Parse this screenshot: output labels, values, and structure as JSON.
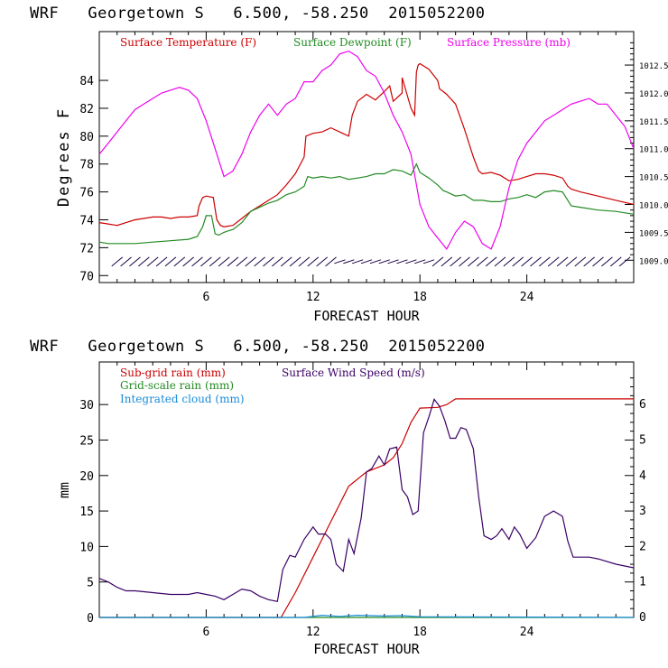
{
  "chart_data": [
    {
      "type": "line",
      "title": "WRF   Georgetown S   6.500, -58.250  2015052200",
      "xlabel": "FORECAST HOUR",
      "ylabel": "Degrees F",
      "xlim": [
        0,
        30
      ],
      "ylim": [
        69.5,
        87.5
      ],
      "x_ticks": [
        6,
        12,
        18,
        24
      ],
      "y_ticks": [
        70,
        72,
        74,
        76,
        78,
        80,
        82,
        84
      ],
      "y2lim": [
        1008.6,
        1013.1
      ],
      "y2_ticks": [
        "1009.0",
        "1009.5",
        "1010.0",
        "1010.5",
        "1011.0",
        "1011.5",
        "1012.0",
        "1012.5"
      ],
      "series": [
        {
          "name": "Surface Temperature (F)",
          "color": "#cc0000",
          "axis": "left",
          "x": [
            0,
            0.5,
            1,
            1.5,
            2,
            2.5,
            3,
            3.5,
            4,
            4.5,
            5,
            5.5,
            5.6,
            5.8,
            6,
            6.4,
            6.6,
            6.8,
            7,
            7.5,
            8,
            8.5,
            9,
            9.5,
            10,
            10.5,
            11,
            11.5,
            11.6,
            12,
            12.5,
            13,
            13.5,
            14,
            14.2,
            14.5,
            15,
            15.5,
            16,
            16.3,
            16.5,
            17,
            17,
            17.5,
            17.7,
            17.8,
            17.9,
            18,
            18.5,
            19,
            19.1,
            19.3,
            19.5,
            20,
            20.5,
            21,
            21.3,
            21.5,
            22,
            22.5,
            23,
            23.5,
            24,
            24.5,
            25,
            25.5,
            26,
            26.3,
            26.5,
            27,
            28,
            29,
            30
          ],
          "y": [
            73.8,
            73.7,
            73.6,
            73.8,
            74.0,
            74.1,
            74.2,
            74.2,
            74.1,
            74.2,
            74.2,
            74.3,
            75.0,
            75.6,
            75.7,
            75.6,
            74.0,
            73.6,
            73.5,
            73.6,
            74.1,
            74.6,
            75.0,
            75.4,
            75.8,
            76.5,
            77.3,
            78.5,
            80.0,
            80.2,
            80.3,
            80.6,
            80.3,
            80.0,
            81.5,
            82.5,
            83.0,
            82.6,
            83.2,
            83.6,
            82.5,
            83.1,
            84.2,
            82.0,
            81.5,
            84.6,
            85.1,
            85.2,
            84.8,
            84.0,
            83.4,
            83.2,
            83.0,
            82.3,
            80.5,
            78.5,
            77.5,
            77.3,
            77.4,
            77.2,
            76.8,
            76.9,
            77.1,
            77.3,
            77.3,
            77.2,
            77.0,
            76.4,
            76.2,
            76.0,
            75.7,
            75.4,
            75.1
          ]
        },
        {
          "name": "Surface Dewpoint (F)",
          "color": "#228b22",
          "axis": "left",
          "x": [
            0,
            0.5,
            1,
            2,
            3,
            4,
            5,
            5.5,
            5.8,
            6,
            6.3,
            6.5,
            6.7,
            7,
            7.2,
            7.5,
            8,
            8.5,
            9,
            9.5,
            10,
            10.5,
            11,
            11.5,
            11.7,
            12,
            12.5,
            13,
            13.5,
            14,
            14.5,
            15,
            15.5,
            16,
            16.5,
            17,
            17.5,
            17.8,
            18,
            18.5,
            19,
            19.3,
            19.5,
            20,
            20.5,
            21,
            21.5,
            22,
            22.5,
            23,
            23.5,
            24,
            24.5,
            25,
            25.5,
            26,
            26.5,
            27,
            28,
            29,
            30
          ],
          "y": [
            72.4,
            72.3,
            72.3,
            72.3,
            72.4,
            72.5,
            72.6,
            72.8,
            73.5,
            74.3,
            74.3,
            73.0,
            72.9,
            73.1,
            73.2,
            73.3,
            73.8,
            74.6,
            74.9,
            75.2,
            75.4,
            75.8,
            76.0,
            76.4,
            77.1,
            77.0,
            77.1,
            77.0,
            77.1,
            76.9,
            77.0,
            77.1,
            77.3,
            77.3,
            77.6,
            77.5,
            77.2,
            78.0,
            77.4,
            77.0,
            76.5,
            76.1,
            76.0,
            75.7,
            75.8,
            75.4,
            75.4,
            75.3,
            75.3,
            75.5,
            75.6,
            75.8,
            75.6,
            76.0,
            76.1,
            76.0,
            75.0,
            74.9,
            74.7,
            74.6,
            74.4
          ]
        },
        {
          "name": "Surface Pressure (mb)",
          "color": "#ee00ee",
          "axis": "right",
          "x": [
            0,
            0.5,
            1,
            1.5,
            2,
            2.5,
            3,
            3.5,
            4,
            4.5,
            5,
            5.5,
            6,
            6.5,
            7,
            7.5,
            8,
            8.5,
            9,
            9.5,
            10,
            10.5,
            11,
            11.5,
            12,
            12.5,
            13,
            13.5,
            14,
            14.5,
            15,
            15.5,
            16,
            16.5,
            17,
            17.5,
            18,
            18.5,
            19,
            19.5,
            20,
            20.5,
            21,
            21.5,
            22,
            22.5,
            23,
            23.5,
            24,
            24.5,
            25,
            25.5,
            26,
            26.5,
            27,
            27.5,
            28,
            28.5,
            29,
            29.5,
            30
          ],
          "y": [
            1010.9,
            1011.1,
            1011.3,
            1011.5,
            1011.7,
            1011.8,
            1011.9,
            1012.0,
            1012.05,
            1012.1,
            1012.05,
            1011.9,
            1011.5,
            1011.0,
            1010.5,
            1010.6,
            1010.9,
            1011.3,
            1011.6,
            1011.8,
            1011.6,
            1011.8,
            1011.9,
            1012.2,
            1012.2,
            1012.4,
            1012.5,
            1012.7,
            1012.75,
            1012.65,
            1012.4,
            1012.3,
            1012.0,
            1011.6,
            1011.3,
            1010.9,
            1010.0,
            1009.6,
            1009.4,
            1009.2,
            1009.5,
            1009.7,
            1009.6,
            1009.3,
            1009.2,
            1009.6,
            1010.3,
            1010.8,
            1011.1,
            1011.3,
            1011.5,
            1011.6,
            1011.7,
            1011.8,
            1011.85,
            1011.9,
            1011.8,
            1011.8,
            1011.6,
            1011.4,
            1011.0
          ]
        }
      ],
      "wind_barbs": "Surface wind barbs along the bottom of the panel near 71 F"
    },
    {
      "type": "line",
      "title": "WRF   Georgetown S   6.500, -58.250  2015052200",
      "xlabel": "FORECAST HOUR",
      "ylabel": "mm",
      "xlim": [
        0,
        30
      ],
      "ylim": [
        0,
        36
      ],
      "x_ticks": [
        6,
        12,
        18,
        24
      ],
      "y_ticks": [
        0,
        5,
        10,
        15,
        20,
        25,
        30
      ],
      "y2lim": [
        0,
        7.2
      ],
      "y2_ticks": [
        0,
        1,
        2,
        3,
        4,
        5,
        6
      ],
      "series": [
        {
          "name": "Sub-grid rain (mm)",
          "color": "#cc0000",
          "axis": "left",
          "x": [
            0,
            10.2,
            11,
            12,
            13,
            14,
            15,
            16,
            16.5,
            17,
            17.5,
            18,
            19,
            19.5,
            20,
            22,
            25,
            28,
            30
          ],
          "y": [
            0,
            0,
            3.5,
            8.5,
            13.5,
            18.5,
            20.5,
            21.5,
            22.5,
            24.5,
            27.5,
            29.5,
            29.6,
            30.0,
            30.8,
            30.8,
            30.8,
            30.8,
            30.8
          ]
        },
        {
          "name": "Grid-scale rain (mm)",
          "color": "#228b22",
          "axis": "left",
          "x": [
            0,
            30
          ],
          "y": [
            0,
            0
          ]
        },
        {
          "name": "Integrated cloud (mm)",
          "color": "#1a8cd8",
          "axis": "left",
          "x": [
            0,
            11.5,
            12.5,
            13.5,
            14.5,
            16,
            17,
            18,
            30
          ],
          "y": [
            0,
            0,
            0.3,
            0.15,
            0.3,
            0.2,
            0.25,
            0.1,
            0
          ]
        },
        {
          "name": "Surface Wind Speed (m/s)",
          "color": "#3a0066",
          "axis": "right",
          "x": [
            0,
            0.5,
            1,
            1.5,
            2,
            3,
            4,
            5,
            5.5,
            6,
            6.5,
            7,
            7.5,
            8,
            8.5,
            9,
            9.5,
            10,
            10.3,
            10.7,
            11,
            11.5,
            12,
            12.3,
            12.7,
            13,
            13.3,
            13.7,
            14,
            14.3,
            14.7,
            15,
            15.3,
            15.7,
            16,
            16.3,
            16.7,
            17,
            17.3,
            17.6,
            17.9,
            18.2,
            18.5,
            18.8,
            19.1,
            19.4,
            19.7,
            20,
            20.3,
            20.6,
            21,
            21.3,
            21.6,
            22,
            22.3,
            22.6,
            23,
            23.3,
            23.6,
            24,
            24.5,
            25,
            25.5,
            26,
            26.3,
            26.6,
            27,
            27.5,
            28,
            29,
            29.5,
            30
          ],
          "y": [
            1.1,
            1.0,
            0.85,
            0.75,
            0.75,
            0.7,
            0.65,
            0.65,
            0.7,
            0.65,
            0.6,
            0.5,
            0.65,
            0.8,
            0.75,
            0.6,
            0.5,
            0.45,
            1.35,
            1.75,
            1.7,
            2.2,
            2.55,
            2.35,
            2.35,
            2.2,
            1.5,
            1.3,
            2.2,
            1.8,
            2.8,
            4.1,
            4.2,
            4.55,
            4.3,
            4.75,
            4.8,
            3.6,
            3.4,
            2.9,
            3.0,
            5.2,
            5.65,
            6.15,
            5.95,
            5.55,
            5.05,
            5.05,
            5.35,
            5.3,
            4.75,
            3.4,
            2.3,
            2.2,
            2.3,
            2.5,
            2.2,
            2.55,
            2.35,
            1.95,
            2.25,
            2.85,
            3.0,
            2.85,
            2.15,
            1.7,
            1.7,
            1.7,
            1.65,
            1.5,
            1.45,
            1.4
          ]
        }
      ]
    }
  ]
}
